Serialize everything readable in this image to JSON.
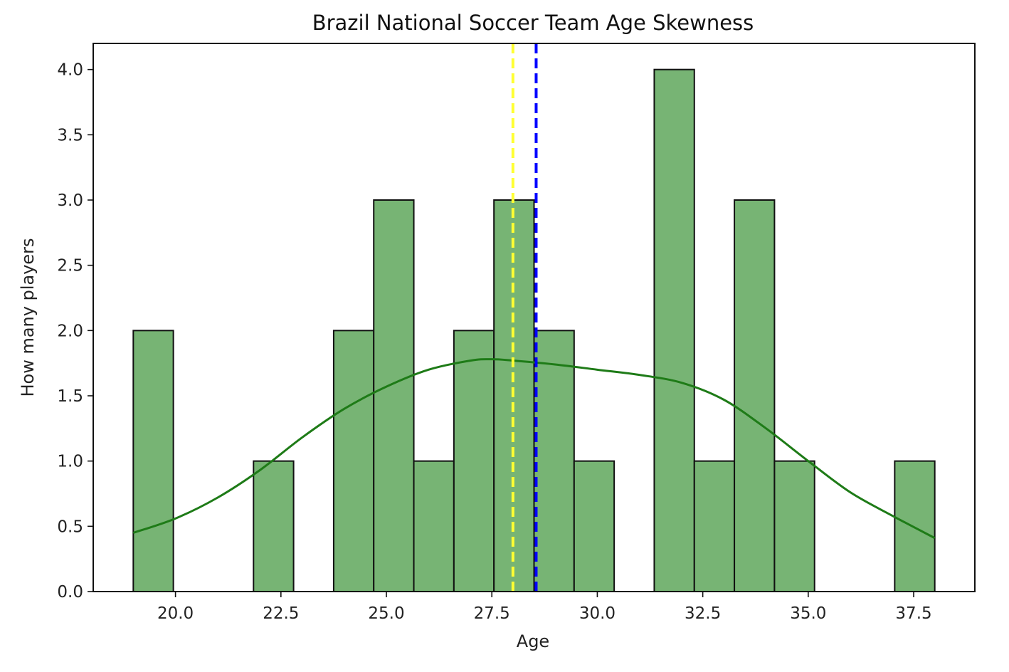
{
  "chart_data": {
    "type": "bar",
    "title": "Brazil National Soccer Team Age Skewness",
    "xlabel": "Age",
    "ylabel": "How many players",
    "xlim": [
      18.05,
      38.95
    ],
    "ylim": [
      0,
      4.2
    ],
    "grid": false,
    "legend": "none",
    "x_ticks": [
      "20.0",
      "22.5",
      "25.0",
      "27.5",
      "30.0",
      "32.5",
      "35.0",
      "37.5"
    ],
    "y_ticks": [
      "0.0",
      "0.5",
      "1.0",
      "1.5",
      "2.0",
      "2.5",
      "3.0",
      "3.5",
      "4.0"
    ],
    "bins": [
      {
        "x0": 19.0,
        "x1": 19.95,
        "count": 2
      },
      {
        "x0": 19.95,
        "x1": 20.9,
        "count": 0
      },
      {
        "x0": 20.9,
        "x1": 21.85,
        "count": 0
      },
      {
        "x0": 21.85,
        "x1": 22.8,
        "count": 1
      },
      {
        "x0": 22.8,
        "x1": 23.75,
        "count": 0
      },
      {
        "x0": 23.75,
        "x1": 24.7,
        "count": 2
      },
      {
        "x0": 24.7,
        "x1": 25.65,
        "count": 3
      },
      {
        "x0": 25.65,
        "x1": 26.6,
        "count": 1
      },
      {
        "x0": 26.6,
        "x1": 27.55,
        "count": 2
      },
      {
        "x0": 27.55,
        "x1": 28.5,
        "count": 3
      },
      {
        "x0": 28.5,
        "x1": 29.45,
        "count": 2
      },
      {
        "x0": 29.45,
        "x1": 30.4,
        "count": 1
      },
      {
        "x0": 30.4,
        "x1": 31.35,
        "count": 0
      },
      {
        "x0": 31.35,
        "x1": 32.3,
        "count": 4
      },
      {
        "x0": 32.3,
        "x1": 33.25,
        "count": 1
      },
      {
        "x0": 33.25,
        "x1": 34.2,
        "count": 3
      },
      {
        "x0": 34.2,
        "x1": 35.15,
        "count": 1
      },
      {
        "x0": 35.15,
        "x1": 36.1,
        "count": 0
      },
      {
        "x0": 36.1,
        "x1": 37.05,
        "count": 0
      },
      {
        "x0": 37.05,
        "x1": 38.0,
        "count": 1
      }
    ],
    "kde": [
      [
        19.0,
        0.45
      ],
      [
        20.0,
        0.56
      ],
      [
        21.0,
        0.72
      ],
      [
        22.0,
        0.93
      ],
      [
        23.0,
        1.18
      ],
      [
        24.0,
        1.4
      ],
      [
        25.0,
        1.57
      ],
      [
        26.0,
        1.7
      ],
      [
        27.0,
        1.77
      ],
      [
        27.5,
        1.78
      ],
      [
        28.0,
        1.77
      ],
      [
        29.0,
        1.74
      ],
      [
        30.0,
        1.7
      ],
      [
        31.0,
        1.66
      ],
      [
        32.0,
        1.6
      ],
      [
        33.0,
        1.47
      ],
      [
        34.0,
        1.25
      ],
      [
        35.0,
        1.0
      ],
      [
        36.0,
        0.76
      ],
      [
        37.0,
        0.58
      ],
      [
        38.0,
        0.41
      ]
    ],
    "vlines": [
      {
        "x": 28.0,
        "color": "#ffff33",
        "style": "dashed"
      },
      {
        "x": 28.55,
        "color": "#0000ff",
        "style": "dashed"
      }
    ],
    "colors": {
      "bar_fill": "#77b474",
      "bar_edge": "#111111",
      "kde_line": "#1e7b17"
    }
  }
}
